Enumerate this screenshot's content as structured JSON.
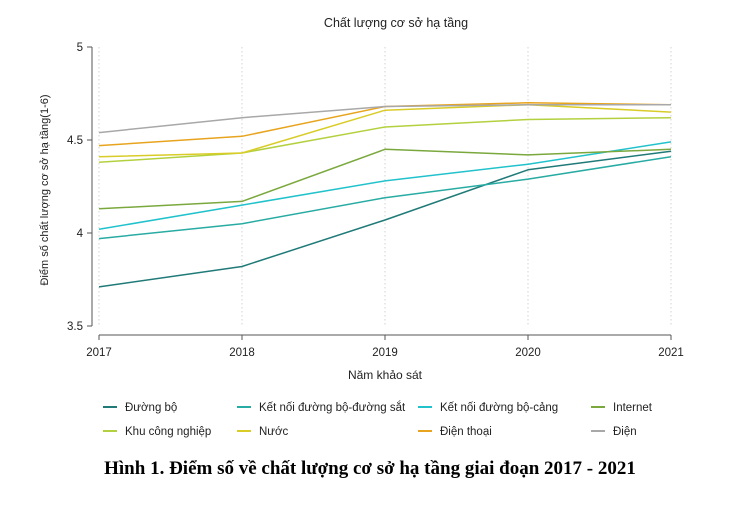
{
  "chart_data": {
    "type": "line",
    "title": "Chất lượng cơ sở hạ tầng",
    "xlabel": "Năm khảo sát",
    "ylabel": "Điểm số chất lượng cơ sở hạ tầng(1-6)",
    "x": [
      2017,
      2018,
      2019,
      2020,
      2021
    ],
    "x_tick_labels": [
      "2017",
      "2018",
      "2019",
      "2020",
      "2021"
    ],
    "y_tick_labels": [
      "3.5",
      "4",
      "4.5",
      "5"
    ],
    "ylim": [
      3.5,
      5.0
    ],
    "grid": "vertical-dotted",
    "legend_position": "bottom",
    "series": [
      {
        "name": "Đường bộ",
        "color": "#1f7a78",
        "values": [
          3.71,
          3.82,
          4.07,
          4.34,
          4.44
        ]
      },
      {
        "name": "Kết nối đường bộ-đường sắt",
        "color": "#27aba2",
        "values": [
          3.97,
          4.05,
          4.19,
          4.29,
          4.41
        ]
      },
      {
        "name": "Kết nối đường bộ-cảng",
        "color": "#21c2cc",
        "values": [
          4.02,
          4.15,
          4.28,
          4.37,
          4.49
        ]
      },
      {
        "name": "Internet",
        "color": "#7aa83d",
        "values": [
          4.13,
          4.17,
          4.45,
          4.42,
          4.45
        ]
      },
      {
        "name": "Khu công nghiệp",
        "color": "#b3d13e",
        "values": [
          4.38,
          4.43,
          4.57,
          4.61,
          4.62
        ]
      },
      {
        "name": "Nước",
        "color": "#d9cc27",
        "values": [
          4.41,
          4.43,
          4.66,
          4.69,
          4.65
        ]
      },
      {
        "name": "Điện thoại",
        "color": "#e8a41e",
        "values": [
          4.47,
          4.52,
          4.68,
          4.7,
          4.69
        ]
      },
      {
        "name": "Điện",
        "color": "#a8a8a8",
        "values": [
          4.54,
          4.62,
          4.68,
          4.69,
          4.69
        ]
      }
    ]
  },
  "caption": "Hình 1. Điểm số về chất lượng cơ sở hạ tầng giai đoạn 2017 - 2021"
}
